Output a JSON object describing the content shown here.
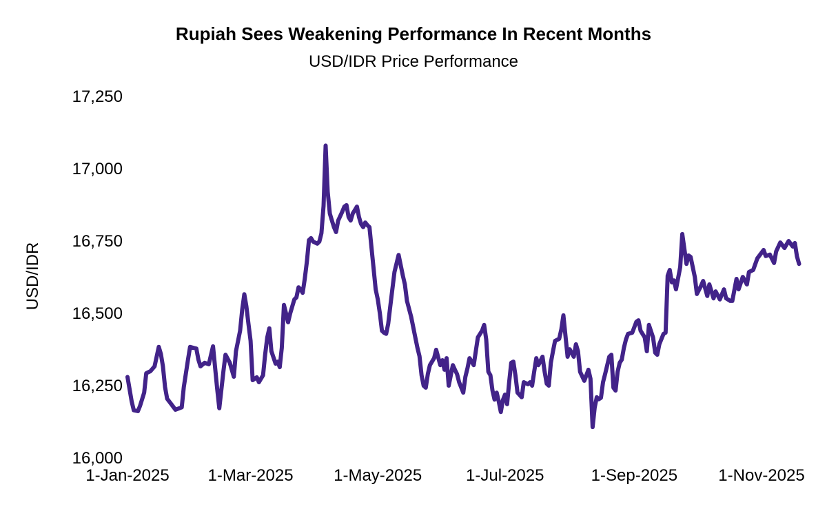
{
  "chart_data": {
    "type": "line",
    "title": "Rupiah Sees Weakening Performance In Recent Months",
    "subtitle": "USD/IDR Price Performance",
    "ylabel": "USD/IDR",
    "series_name": "USD/IDR",
    "line_color": "#422389",
    "grid": false,
    "legend": false,
    "ylim": [
      16000,
      17250
    ],
    "yticks": [
      {
        "value": 16000,
        "label": "16,000"
      },
      {
        "value": 16250,
        "label": "16,250"
      },
      {
        "value": 16500,
        "label": "16,500"
      },
      {
        "value": 16750,
        "label": "16,750"
      },
      {
        "value": 17000,
        "label": "17,000"
      },
      {
        "value": 17250,
        "label": "17,250"
      }
    ],
    "x_unit": "days since 2025-01-01",
    "xlim": [
      0,
      322
    ],
    "xticks": [
      {
        "day": 0,
        "label": "1-Jan-2025"
      },
      {
        "day": 59,
        "label": "1-Mar-2025"
      },
      {
        "day": 120,
        "label": "1-May-2025"
      },
      {
        "day": 181,
        "label": "1-Jul-2025"
      },
      {
        "day": 243,
        "label": "1-Sep-2025"
      },
      {
        "day": 304,
        "label": "1-Nov-2025"
      }
    ],
    "points": [
      [
        0,
        16280
      ],
      [
        1,
        16238
      ],
      [
        2,
        16195
      ],
      [
        3,
        16165
      ],
      [
        5,
        16162
      ],
      [
        6,
        16180
      ],
      [
        8,
        16226
      ],
      [
        9,
        16293
      ],
      [
        11,
        16300
      ],
      [
        13,
        16317
      ],
      [
        15,
        16384
      ],
      [
        16,
        16360
      ],
      [
        17,
        16317
      ],
      [
        18,
        16245
      ],
      [
        19,
        16205
      ],
      [
        21,
        16186
      ],
      [
        23,
        16167
      ],
      [
        26,
        16175
      ],
      [
        27,
        16245
      ],
      [
        29,
        16340
      ],
      [
        30,
        16384
      ],
      [
        32,
        16380
      ],
      [
        33,
        16378
      ],
      [
        34,
        16340
      ],
      [
        35,
        16317
      ],
      [
        37,
        16329
      ],
      [
        39,
        16324
      ],
      [
        41,
        16386
      ],
      [
        43,
        16240
      ],
      [
        44,
        16172
      ],
      [
        46,
        16300
      ],
      [
        47,
        16357
      ],
      [
        49,
        16330
      ],
      [
        51,
        16281
      ],
      [
        52,
        16369
      ],
      [
        54,
        16440
      ],
      [
        55,
        16512
      ],
      [
        56,
        16566
      ],
      [
        57,
        16524
      ],
      [
        58,
        16464
      ],
      [
        59,
        16405
      ],
      [
        60,
        16269
      ],
      [
        62,
        16279
      ],
      [
        63,
        16262
      ],
      [
        64,
        16274
      ],
      [
        65,
        16286
      ],
      [
        66,
        16357
      ],
      [
        67,
        16417
      ],
      [
        68,
        16448
      ],
      [
        69,
        16369
      ],
      [
        71,
        16326
      ],
      [
        72,
        16333
      ],
      [
        73,
        16314
      ],
      [
        74,
        16381
      ],
      [
        75,
        16529
      ],
      [
        76,
        16500
      ],
      [
        77,
        16469
      ],
      [
        78,
        16500
      ],
      [
        79,
        16524
      ],
      [
        80,
        16548
      ],
      [
        81,
        16555
      ],
      [
        82,
        16590
      ],
      [
        83,
        16583
      ],
      [
        84,
        16571
      ],
      [
        85,
        16619
      ],
      [
        86,
        16679
      ],
      [
        87,
        16753
      ],
      [
        88,
        16760
      ],
      [
        89,
        16748
      ],
      [
        91,
        16741
      ],
      [
        92,
        16748
      ],
      [
        93,
        16777
      ],
      [
        94,
        16872
      ],
      [
        95,
        17080
      ],
      [
        96,
        16920
      ],
      [
        97,
        16845
      ],
      [
        98,
        16821
      ],
      [
        99,
        16798
      ],
      [
        100,
        16781
      ],
      [
        101,
        16821
      ],
      [
        103,
        16852
      ],
      [
        104,
        16869
      ],
      [
        105,
        16874
      ],
      [
        106,
        16833
      ],
      [
        107,
        16821
      ],
      [
        108,
        16845
      ],
      [
        109,
        16857
      ],
      [
        110,
        16869
      ],
      [
        111,
        16833
      ],
      [
        112,
        16809
      ],
      [
        113,
        16798
      ],
      [
        114,
        16814
      ],
      [
        115,
        16805
      ],
      [
        116,
        16798
      ],
      [
        117,
        16726
      ],
      [
        118,
        16655
      ],
      [
        119,
        16583
      ],
      [
        120,
        16548
      ],
      [
        121,
        16500
      ],
      [
        122,
        16440
      ],
      [
        123,
        16433
      ],
      [
        124,
        16429
      ],
      [
        125,
        16464
      ],
      [
        126,
        16524
      ],
      [
        127,
        16583
      ],
      [
        128,
        16643
      ],
      [
        130,
        16702
      ],
      [
        131,
        16667
      ],
      [
        132,
        16631
      ],
      [
        133,
        16600
      ],
      [
        134,
        16543
      ],
      [
        136,
        16488
      ],
      [
        138,
        16417
      ],
      [
        139,
        16381
      ],
      [
        140,
        16352
      ],
      [
        141,
        16286
      ],
      [
        142,
        16250
      ],
      [
        143,
        16243
      ],
      [
        144,
        16290
      ],
      [
        145,
        16321
      ],
      [
        147,
        16345
      ],
      [
        148,
        16374
      ],
      [
        150,
        16321
      ],
      [
        151,
        16338
      ],
      [
        152,
        16305
      ],
      [
        153,
        16345
      ],
      [
        154,
        16250
      ],
      [
        156,
        16321
      ],
      [
        157,
        16305
      ],
      [
        158,
        16290
      ],
      [
        159,
        16262
      ],
      [
        161,
        16226
      ],
      [
        162,
        16281
      ],
      [
        163,
        16310
      ],
      [
        164,
        16345
      ],
      [
        166,
        16321
      ],
      [
        167,
        16369
      ],
      [
        168,
        16417
      ],
      [
        170,
        16440
      ],
      [
        171,
        16460
      ],
      [
        172,
        16410
      ],
      [
        173,
        16298
      ],
      [
        174,
        16286
      ],
      [
        175,
        16233
      ],
      [
        176,
        16202
      ],
      [
        177,
        16226
      ],
      [
        178,
        16195
      ],
      [
        179,
        16159
      ],
      [
        180,
        16200
      ],
      [
        181,
        16219
      ],
      [
        182,
        16186
      ],
      [
        183,
        16262
      ],
      [
        184,
        16329
      ],
      [
        185,
        16333
      ],
      [
        186,
        16286
      ],
      [
        187,
        16226
      ],
      [
        189,
        16210
      ],
      [
        190,
        16262
      ],
      [
        192,
        16255
      ],
      [
        193,
        16262
      ],
      [
        194,
        16250
      ],
      [
        195,
        16298
      ],
      [
        196,
        16345
      ],
      [
        197,
        16321
      ],
      [
        199,
        16350
      ],
      [
        200,
        16298
      ],
      [
        201,
        16257
      ],
      [
        202,
        16250
      ],
      [
        203,
        16329
      ],
      [
        204,
        16369
      ],
      [
        205,
        16405
      ],
      [
        207,
        16412
      ],
      [
        208,
        16445
      ],
      [
        209,
        16493
      ],
      [
        211,
        16350
      ],
      [
        212,
        16376
      ],
      [
        214,
        16350
      ],
      [
        215,
        16393
      ],
      [
        216,
        16369
      ],
      [
        217,
        16298
      ],
      [
        219,
        16267
      ],
      [
        221,
        16305
      ],
      [
        222,
        16274
      ],
      [
        223,
        16107
      ],
      [
        224,
        16174
      ],
      [
        225,
        16210
      ],
      [
        226,
        16203
      ],
      [
        227,
        16208
      ],
      [
        228,
        16262
      ],
      [
        229,
        16290
      ],
      [
        231,
        16350
      ],
      [
        232,
        16357
      ],
      [
        233,
        16243
      ],
      [
        234,
        16233
      ],
      [
        235,
        16298
      ],
      [
        236,
        16329
      ],
      [
        237,
        16340
      ],
      [
        238,
        16381
      ],
      [
        239,
        16410
      ],
      [
        240,
        16429
      ],
      [
        242,
        16433
      ],
      [
        244,
        16471
      ],
      [
        245,
        16476
      ],
      [
        246,
        16440
      ],
      [
        248,
        16417
      ],
      [
        249,
        16369
      ],
      [
        250,
        16460
      ],
      [
        252,
        16417
      ],
      [
        253,
        16364
      ],
      [
        254,
        16357
      ],
      [
        255,
        16393
      ],
      [
        257,
        16429
      ],
      [
        258,
        16433
      ],
      [
        259,
        16630
      ],
      [
        260,
        16650
      ],
      [
        261,
        16607
      ],
      [
        262,
        16614
      ],
      [
        263,
        16583
      ],
      [
        265,
        16660
      ],
      [
        266,
        16774
      ],
      [
        268,
        16671
      ],
      [
        269,
        16700
      ],
      [
        270,
        16695
      ],
      [
        272,
        16626
      ],
      [
        273,
        16567
      ],
      [
        275,
        16595
      ],
      [
        276,
        16612
      ],
      [
        278,
        16560
      ],
      [
        279,
        16600
      ],
      [
        281,
        16552
      ],
      [
        282,
        16576
      ],
      [
        284,
        16548
      ],
      [
        286,
        16583
      ],
      [
        287,
        16552
      ],
      [
        289,
        16543
      ],
      [
        290,
        16543
      ],
      [
        292,
        16619
      ],
      [
        293,
        16583
      ],
      [
        295,
        16626
      ],
      [
        297,
        16600
      ],
      [
        298,
        16643
      ],
      [
        300,
        16650
      ],
      [
        302,
        16690
      ],
      [
        305,
        16719
      ],
      [
        306,
        16698
      ],
      [
        308,
        16703
      ],
      [
        310,
        16674
      ],
      [
        311,
        16714
      ],
      [
        313,
        16745
      ],
      [
        315,
        16726
      ],
      [
        317,
        16750
      ],
      [
        319,
        16731
      ],
      [
        320,
        16743
      ],
      [
        321,
        16697
      ],
      [
        322,
        16671
      ]
    ]
  }
}
